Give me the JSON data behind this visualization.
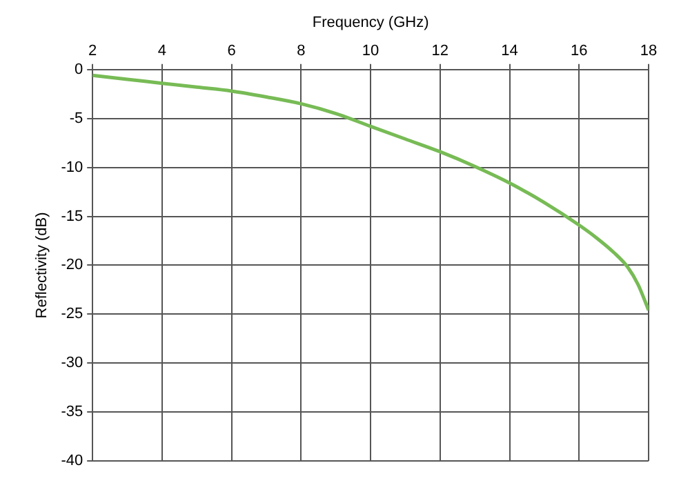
{
  "chart_data": {
    "type": "line",
    "xlabel": "Frequency (GHz)",
    "ylabel": "Reflectivity (dB)",
    "x": [
      2,
      3,
      4,
      5,
      6,
      7,
      8,
      9,
      10,
      11,
      12,
      13,
      14,
      15,
      16,
      16.5,
      17,
      17.4,
      17.7,
      18
    ],
    "series": [
      {
        "color": "#77bb55",
        "values": [
          -0.6,
          -1.0,
          -1.4,
          -1.8,
          -2.2,
          -2.8,
          -3.5,
          -4.5,
          -5.8,
          -7.1,
          -8.4,
          -9.9,
          -11.6,
          -13.6,
          -15.9,
          -17.2,
          -18.7,
          -20.2,
          -22.0,
          -24.6
        ]
      }
    ],
    "xlim": [
      2,
      18
    ],
    "xticks": [
      2,
      4,
      6,
      8,
      10,
      12,
      14,
      16,
      18
    ],
    "ylim": [
      -40,
      0
    ],
    "yticks": [
      0,
      -5,
      -10,
      -15,
      -20,
      -25,
      -30,
      -35,
      -40
    ],
    "grid": true,
    "legend": false,
    "marker": "none",
    "line_style": "solid"
  }
}
